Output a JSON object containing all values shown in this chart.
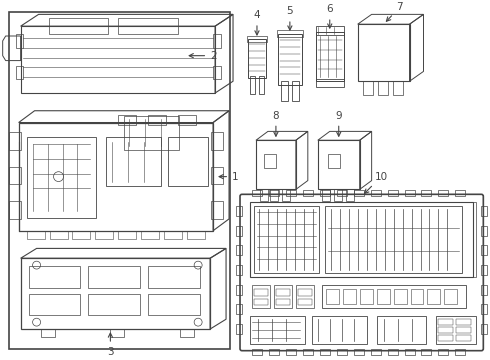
{
  "bg": "#ffffff",
  "lc": "#444444",
  "lc2": "#888888",
  "fig_w": 4.9,
  "fig_h": 3.6,
  "dpi": 100
}
